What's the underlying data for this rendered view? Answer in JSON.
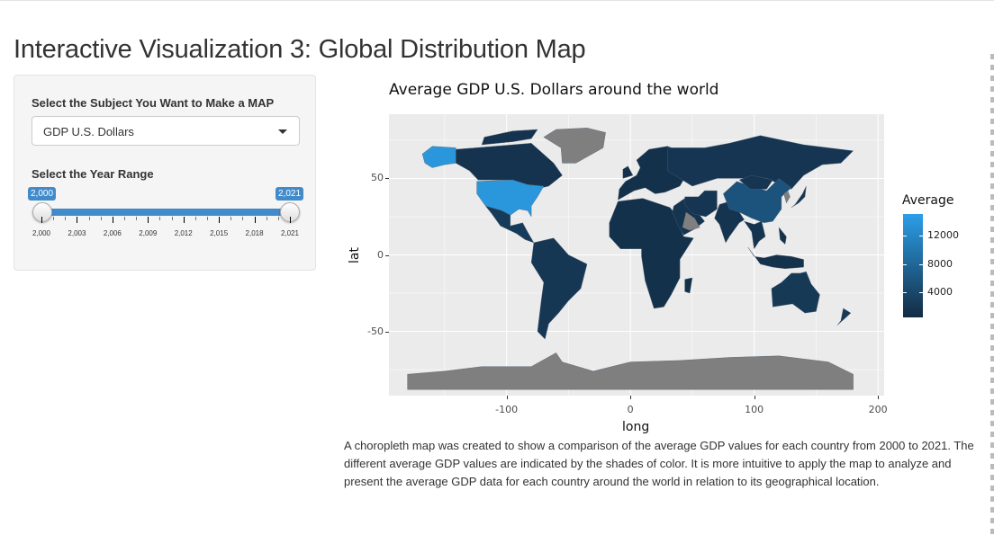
{
  "page": {
    "title": "Interactive Visualization 3: Global Distribution Map"
  },
  "sidebar": {
    "subject_label": "Select the Subject You Want to Make a MAP",
    "subject_selected": "GDP U.S. Dollars",
    "year_label": "Select the Year Range",
    "slider": {
      "min": 2000,
      "max": 2021,
      "from": 2000,
      "to": 2021,
      "from_label": "2,000",
      "to_label": "2,021",
      "tick_labels": [
        "2,000",
        "2,003",
        "2,006",
        "2,009",
        "2,012",
        "2,015",
        "2,018",
        "2,021"
      ]
    }
  },
  "chart_data": {
    "type": "choropleth-map",
    "title": "Average GDP U.S. Dollars around the world",
    "xlabel": "long",
    "ylabel": "lat",
    "xlim": [
      -195,
      205
    ],
    "ylim": [
      -92,
      92
    ],
    "x_ticks": [
      -100,
      0,
      100,
      200
    ],
    "x_tick_labels": [
      "-100",
      "0",
      "100",
      "200"
    ],
    "y_ticks": [
      50,
      0,
      -50
    ],
    "y_tick_labels": [
      "50",
      "0",
      "-50"
    ],
    "legend": {
      "title": "Average",
      "range": [
        500,
        15000
      ],
      "ticks": [
        12000,
        8000,
        4000
      ],
      "tick_labels": [
        "12000",
        "8000",
        "4000"
      ],
      "low_color": "#132b43",
      "high_color": "#2c9fe8"
    },
    "na_color": "#7f7f7f",
    "regions": [
      {
        "name": "United States",
        "value": 14000
      },
      {
        "name": "Alaska",
        "value": 14000
      },
      {
        "name": "China",
        "value": 5500
      },
      {
        "name": "Canada",
        "value": 1500
      },
      {
        "name": "Greenland",
        "value": null
      },
      {
        "name": "Antarctica",
        "value": null
      }
    ]
  },
  "description": "A choropleth map was created to show a comparison of the average GDP values for each country from 2000 to 2021. The different average GDP values are indicated by the shades of color. It is more intuitive to apply the map to analyze and present the average GDP data for each country around the world in relation to its geographical location.",
  "colors": {
    "accent": "#428bca",
    "panel": "#ebebeb"
  }
}
